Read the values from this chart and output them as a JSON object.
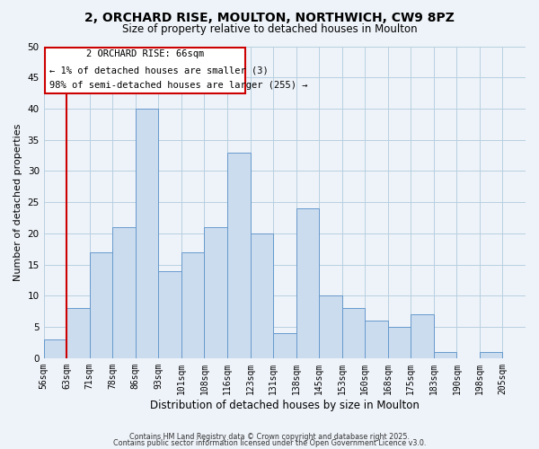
{
  "title": "2, ORCHARD RISE, MOULTON, NORTHWICH, CW9 8PZ",
  "subtitle": "Size of property relative to detached houses in Moulton",
  "xlabel": "Distribution of detached houses by size in Moulton",
  "ylabel": "Number of detached properties",
  "bin_labels": [
    "56sqm",
    "63sqm",
    "71sqm",
    "78sqm",
    "86sqm",
    "93sqm",
    "101sqm",
    "108sqm",
    "116sqm",
    "123sqm",
    "131sqm",
    "138sqm",
    "145sqm",
    "153sqm",
    "160sqm",
    "168sqm",
    "175sqm",
    "183sqm",
    "190sqm",
    "198sqm",
    "205sqm"
  ],
  "bar_heights": [
    3,
    8,
    17,
    21,
    40,
    14,
    17,
    21,
    33,
    20,
    4,
    24,
    10,
    8,
    6,
    5,
    7,
    1,
    0,
    1,
    0
  ],
  "bar_color": "#ccdcef",
  "bar_edge_color": "#6699cc",
  "ylim": [
    0,
    50
  ],
  "yticks": [
    0,
    5,
    10,
    15,
    20,
    25,
    30,
    35,
    40,
    45,
    50
  ],
  "vline_x": 1,
  "vline_color": "#cc0000",
  "annotation_title": "2 ORCHARD RISE: 66sqm",
  "annotation_line1": "← 1% of detached houses are smaller (3)",
  "annotation_line2": "98% of semi-detached houses are larger (255) →",
  "annotation_box_edgecolor": "#cc0000",
  "background_color": "#eef3f9",
  "grid_color": "#b8cfe0",
  "footer1": "Contains HM Land Registry data © Crown copyright and database right 2025.",
  "footer2": "Contains public sector information licensed under the Open Government Licence v3.0."
}
